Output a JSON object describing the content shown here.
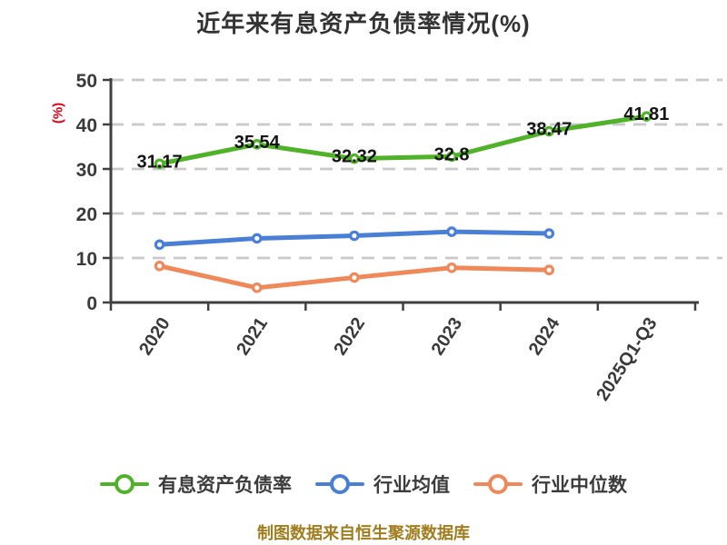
{
  "chart_data": {
    "type": "line",
    "title": "近年来有息资产负债率情况(%)",
    "ylabel": "(%)",
    "ylim": [
      0,
      50
    ],
    "yticks": [
      0,
      10,
      20,
      30,
      40,
      50
    ],
    "grid": "horizontal-dashed",
    "legend_position": "bottom",
    "categories": [
      "2020",
      "2021",
      "2022",
      "2023",
      "2024",
      "2025Q1-Q3"
    ],
    "series": [
      {
        "name": "有息资产负债率",
        "color": "#4fb228",
        "values": [
          31.17,
          35.54,
          32.32,
          32.8,
          38.47,
          41.81
        ],
        "data_labels": [
          "31.17",
          "35.54",
          "32.32",
          "32.8",
          "38.47",
          "41.81"
        ]
      },
      {
        "name": "行业均值",
        "color": "#4a7fd6",
        "values": [
          13.0,
          14.4,
          15.0,
          15.9,
          15.5
        ]
      },
      {
        "name": "行业中位数",
        "color": "#f0895a",
        "values": [
          8.2,
          3.3,
          5.6,
          7.8,
          7.3
        ]
      }
    ]
  },
  "footer": "制图数据来自恒生聚源数据库",
  "colors": {
    "axis": "#3f3f3f",
    "grid": "#c9c9c9",
    "tick_label": "#3a3a3a",
    "data_label": "#141414",
    "title": "#333333",
    "unit_label": "#e60012",
    "footer": "#a07d1e"
  }
}
